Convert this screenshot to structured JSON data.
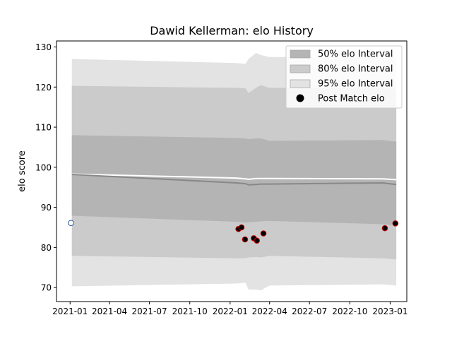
{
  "chart_data": {
    "type": "line",
    "title": "Dawid Kellerman: elo History",
    "xlabel": "",
    "ylabel": "elo score",
    "xlim": [
      "2020-12-01",
      "2023-02-08"
    ],
    "ylim": [
      66.5,
      131.5
    ],
    "x_ticks": [
      "2021-01",
      "2021-04",
      "2021-07",
      "2021-10",
      "2022-01",
      "2022-04",
      "2022-07",
      "2022-10",
      "2023-01"
    ],
    "y_ticks": [
      70,
      80,
      90,
      100,
      110,
      120,
      130
    ],
    "grid": false,
    "legend_position": "top-right",
    "band_x": [
      "2021-01-05",
      "2022-01-15",
      "2022-02-05",
      "2022-02-12",
      "2022-03-01",
      "2022-03-12",
      "2022-04-01",
      "2022-12-15",
      "2023-01-15"
    ],
    "bands": [
      {
        "name": "95% elo Interval",
        "color": "#e3e3e3",
        "upper": [
          127.0,
          126.0,
          125.8,
          127.0,
          128.5,
          128.0,
          127.5,
          127.5,
          127.5
        ],
        "lower": [
          70.3,
          71.0,
          71.2,
          69.5,
          69.5,
          69.3,
          70.5,
          70.8,
          70.5
        ]
      },
      {
        "name": "80% elo Interval",
        "color": "#cbcbcb",
        "upper": [
          120.3,
          119.8,
          119.7,
          118.5,
          119.8,
          120.5,
          119.8,
          119.9,
          119.5
        ],
        "lower": [
          77.9,
          77.3,
          77.3,
          77.5,
          77.6,
          77.5,
          77.9,
          77.3,
          77.0
        ]
      },
      {
        "name": "50% elo Interval",
        "color": "#b4b4b4",
        "upper": [
          108.0,
          107.3,
          107.2,
          107.0,
          107.2,
          107.2,
          106.6,
          106.8,
          106.4
        ],
        "lower": [
          87.9,
          86.4,
          86.2,
          86.3,
          86.4,
          86.5,
          86.6,
          85.8,
          85.5
        ]
      }
    ],
    "mean_line": {
      "color": "#888888",
      "y": [
        98.2,
        96.1,
        95.9,
        95.6,
        95.7,
        95.8,
        95.8,
        96.1,
        95.7
      ]
    },
    "upper_line": {
      "color": "#ffffff",
      "y": [
        98.3,
        97.3,
        97.1,
        97.0,
        97.2,
        97.2,
        97.2,
        97.1,
        96.9
      ]
    },
    "series": [
      {
        "name": "Post Match elo",
        "marker": "circle",
        "points": [
          {
            "x": "2021-01-03",
            "y": 86.1,
            "fill": "#ffffff",
            "edge": "#1f4e9a"
          },
          {
            "x": "2022-01-20",
            "y": 84.6,
            "fill": "#000000",
            "edge": "#cc0000"
          },
          {
            "x": "2022-01-27",
            "y": 85.0,
            "fill": "#000000",
            "edge": "#cc0000"
          },
          {
            "x": "2022-02-04",
            "y": 82.0,
            "fill": "#000000",
            "edge": "#cc0000"
          },
          {
            "x": "2022-02-24",
            "y": 82.3,
            "fill": "#000000",
            "edge": "#cc0000"
          },
          {
            "x": "2022-03-03",
            "y": 81.7,
            "fill": "#000000",
            "edge": "#cc0000"
          },
          {
            "x": "2022-03-18",
            "y": 83.5,
            "fill": "#000000",
            "edge": "#cc0000"
          },
          {
            "x": "2022-12-20",
            "y": 84.8,
            "fill": "#000000",
            "edge": "#cc0000"
          },
          {
            "x": "2023-01-13",
            "y": 86.0,
            "fill": "#000000",
            "edge": "#cc0000"
          }
        ]
      }
    ],
    "legend": [
      {
        "label": "50% elo Interval",
        "swatch": "patch",
        "color": "#b4b4b4"
      },
      {
        "label": "80% elo Interval",
        "swatch": "patch",
        "color": "#cbcbcb"
      },
      {
        "label": "95% elo Interval",
        "swatch": "patch",
        "color": "#e3e3e3"
      },
      {
        "label": "Post Match elo",
        "swatch": "dot",
        "color": "#000000"
      }
    ]
  }
}
